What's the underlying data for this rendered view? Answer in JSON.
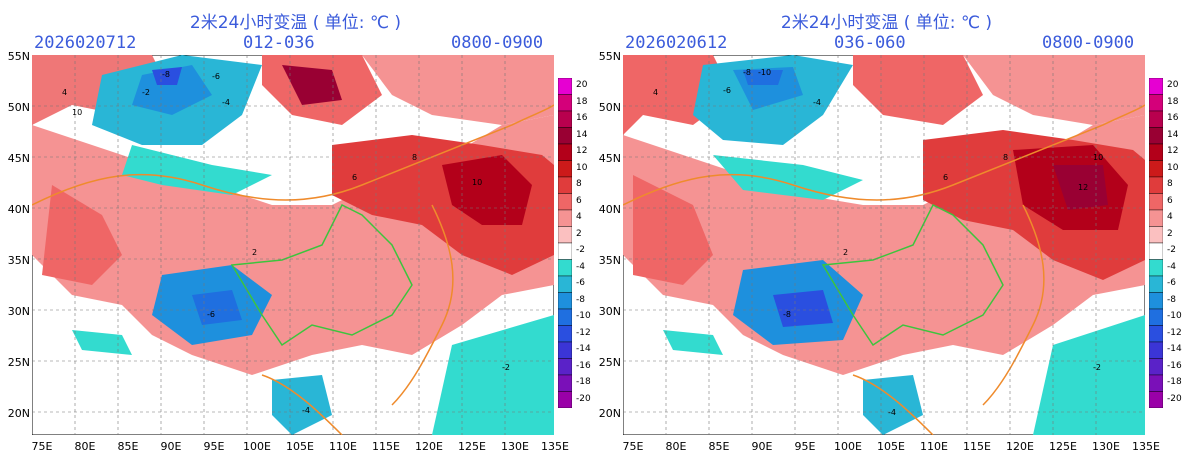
{
  "panels": [
    {
      "title": "2米24小时变温 ( 单位: ℃ )",
      "init_time": "2026020712",
      "forecast_range": "012-036",
      "time_window": "0800-0900",
      "labels": [
        "-8",
        "-6",
        "-2",
        "-4",
        "4",
        "10",
        "8",
        "6",
        "2",
        "-6",
        "-4",
        "10",
        "-2"
      ]
    },
    {
      "title": "2米24小时变温 ( 单位: ℃ )",
      "init_time": "2026020612",
      "forecast_range": "036-060",
      "time_window": "0800-0900",
      "labels": [
        "-8",
        "-10",
        "-6",
        "-4",
        "4",
        "10",
        "8",
        "6",
        "2",
        "-8",
        "-4",
        "12",
        "-2"
      ]
    }
  ],
  "axes": {
    "latitudes": [
      "55N",
      "50N",
      "45N",
      "40N",
      "35N",
      "30N",
      "25N",
      "20N"
    ],
    "longitudes": [
      "75E",
      "80E",
      "85E",
      "90E",
      "95E",
      "100E",
      "105E",
      "110E",
      "115E",
      "120E",
      "125E",
      "130E",
      "135E"
    ]
  },
  "colorbar": {
    "ticks": [
      "20",
      "18",
      "16",
      "14",
      "12",
      "10",
      "8",
      "6",
      "4",
      "2",
      "-2",
      "-4",
      "-6",
      "-8",
      "-10",
      "-12",
      "-14",
      "-16",
      "-18",
      "-20"
    ],
    "colors": [
      "#e600d2",
      "#d4007a",
      "#b8004e",
      "#990033",
      "#b3001a",
      "#cc1a1a",
      "#e03c3c",
      "#ef6666",
      "#f59393",
      "#fbc0c0",
      "#ffffff",
      "#33dbcf",
      "#29b6d6",
      "#1e90dd",
      "#1f6fe0",
      "#2a4fe0",
      "#3b35d6",
      "#5a22c8",
      "#7a10b8",
      "#9a00a8"
    ]
  },
  "colors": {
    "title": "#3b5bdb",
    "warm": "#ef7777",
    "cold": "#2f8fe0",
    "border_orange": "#ef8b2c",
    "border_green": "#3dc43d"
  }
}
